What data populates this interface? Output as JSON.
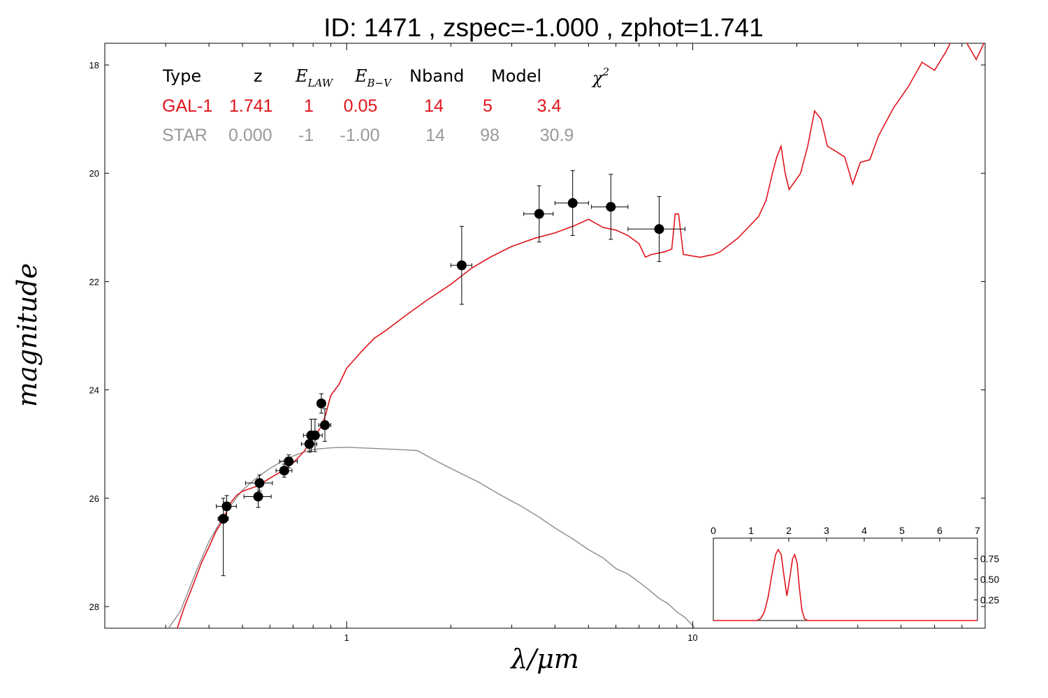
{
  "chart_data": {
    "type": "scatter",
    "title": "ID:  1471  , zspec=-1.000 , zphot=1.741",
    "xlabel": "λ/μm",
    "ylabel": "magnitude",
    "xscale": "log",
    "xlim": [
      0.2,
      70
    ],
    "ylim": [
      28.4,
      17.6
    ],
    "y_inverted": true,
    "x_ticks": [
      1,
      10
    ],
    "x_tick_labels": [
      "1",
      "10"
    ],
    "y_ticks": [
      18,
      20,
      22,
      24,
      26,
      28
    ],
    "y_tick_labels": [
      "18",
      "20",
      "22",
      "24",
      "26",
      "28"
    ],
    "colors": {
      "galaxy": "#e0141c",
      "star": "#8c8c8c",
      "points": "#000000"
    },
    "legend_table": {
      "placement": "top-left",
      "header": {
        "type": "Type",
        "z": "z",
        "elaw_main": "E",
        "elaw_sub": "LAW",
        "ebv_main": "E",
        "ebv_sub": "B−V",
        "nband": "Nband",
        "model": "Model",
        "chi_main": "χ",
        "chi_sup": "2"
      },
      "rows": [
        {
          "type": "GAL-1",
          "z": "1.741",
          "elaw": "1",
          "ebv": "0.05",
          "nband": "14",
          "model": "5",
          "chi2": "3.4",
          "color": "#e0141c"
        },
        {
          "type": "STAR",
          "z": "0.000",
          "elaw": "-1",
          "ebv": "-1.00",
          "nband": "14",
          "model": "98",
          "chi2": "30.9",
          "color": "#999999"
        }
      ]
    },
    "photometry": [
      {
        "x": 0.44,
        "y": 26.38,
        "xerr": 0.015,
        "yerr": 0.38,
        "yerr_low": 1.05
      },
      {
        "x": 0.45,
        "y": 26.15,
        "xerr": 0.03,
        "yerr": 0.2
      },
      {
        "x": 0.56,
        "y": 25.72,
        "xerr": 0.05,
        "yerr": 0.15
      },
      {
        "x": 0.555,
        "y": 25.97,
        "xerr": 0.05,
        "yerr": 0.2
      },
      {
        "x": 0.66,
        "y": 25.49,
        "xerr": 0.035,
        "yerr": 0.12
      },
      {
        "x": 0.68,
        "y": 25.32,
        "xerr": 0.04,
        "yerr": 0.12
      },
      {
        "x": 0.78,
        "y": 25.0,
        "xerr": 0.04,
        "yerr": 0.15
      },
      {
        "x": 0.79,
        "y": 24.84,
        "xerr": 0.04,
        "yerr": 0.3
      },
      {
        "x": 0.81,
        "y": 24.84,
        "xerr": 0.04,
        "yerr": 0.3
      },
      {
        "x": 0.845,
        "y": 24.25,
        "xerr": 0.015,
        "yerr": 0.18
      },
      {
        "x": 0.865,
        "y": 24.65,
        "xerr": 0.035,
        "yerr": 0.3
      },
      {
        "x": 2.15,
        "y": 21.7,
        "xerr": 0.15,
        "yerr": 0.72
      },
      {
        "x": 3.6,
        "y": 20.75,
        "xerr": 0.35,
        "yerr": 0.52
      },
      {
        "x": 4.5,
        "y": 20.55,
        "xerr": 0.5,
        "yerr": 0.6
      },
      {
        "x": 5.8,
        "y": 20.62,
        "xerr": 0.7,
        "yerr": 0.6
      },
      {
        "x": 8.0,
        "y": 21.03,
        "xerr": 1.5,
        "yerr": 0.6
      }
    ],
    "galaxy_model": [
      [
        0.32,
        28.5
      ],
      [
        0.34,
        28.0
      ],
      [
        0.36,
        27.6
      ],
      [
        0.38,
        27.2
      ],
      [
        0.4,
        26.9
      ],
      [
        0.42,
        26.6
      ],
      [
        0.44,
        26.4
      ],
      [
        0.46,
        26.1
      ],
      [
        0.48,
        25.95
      ],
      [
        0.5,
        25.87
      ],
      [
        0.55,
        25.78
      ],
      [
        0.6,
        25.63
      ],
      [
        0.65,
        25.5
      ],
      [
        0.7,
        25.35
      ],
      [
        0.75,
        25.15
      ],
      [
        0.8,
        24.9
      ],
      [
        0.85,
        24.65
      ],
      [
        0.87,
        24.45
      ],
      [
        0.9,
        24.1
      ],
      [
        0.95,
        23.9
      ],
      [
        1.0,
        23.6
      ],
      [
        1.1,
        23.3
      ],
      [
        1.2,
        23.05
      ],
      [
        1.3,
        22.9
      ],
      [
        1.5,
        22.6
      ],
      [
        1.7,
        22.35
      ],
      [
        2.0,
        22.05
      ],
      [
        2.3,
        21.75
      ],
      [
        2.6,
        21.55
      ],
      [
        3.0,
        21.35
      ],
      [
        3.5,
        21.2
      ],
      [
        4.0,
        21.1
      ],
      [
        4.5,
        20.98
      ],
      [
        5.0,
        20.85
      ],
      [
        5.5,
        21.0
      ],
      [
        6.0,
        21.05
      ],
      [
        6.5,
        21.15
      ],
      [
        7.0,
        21.3
      ],
      [
        7.3,
        21.55
      ],
      [
        7.6,
        21.5
      ],
      [
        8.3,
        21.45
      ],
      [
        8.7,
        21.4
      ],
      [
        8.9,
        20.75
      ],
      [
        9.1,
        20.75
      ],
      [
        9.4,
        21.5
      ],
      [
        10.5,
        21.55
      ],
      [
        11.5,
        21.5
      ],
      [
        12.0,
        21.45
      ],
      [
        13.5,
        21.2
      ],
      [
        15.5,
        20.8
      ],
      [
        16.3,
        20.5
      ],
      [
        17.0,
        20.0
      ],
      [
        17.5,
        19.7
      ],
      [
        18.0,
        19.5
      ],
      [
        18.5,
        20.0
      ],
      [
        19.0,
        20.3
      ],
      [
        20.5,
        20.0
      ],
      [
        21.5,
        19.5
      ],
      [
        22.5,
        18.85
      ],
      [
        23.5,
        19.0
      ],
      [
        24.5,
        19.5
      ],
      [
        26.0,
        19.6
      ],
      [
        27.5,
        19.7
      ],
      [
        29.0,
        20.2
      ],
      [
        30.5,
        19.8
      ],
      [
        32.5,
        19.75
      ],
      [
        34.5,
        19.3
      ],
      [
        38.0,
        18.8
      ],
      [
        42.0,
        18.4
      ],
      [
        46.0,
        17.95
      ],
      [
        50.0,
        18.1
      ],
      [
        54.0,
        17.75
      ],
      [
        58.0,
        17.35
      ],
      [
        62.0,
        17.6
      ],
      [
        66.0,
        17.9
      ],
      [
        70.0,
        17.55
      ]
    ],
    "star_model": [
      [
        0.29,
        28.6
      ],
      [
        0.33,
        28.1
      ],
      [
        0.37,
        27.3
      ],
      [
        0.4,
        26.8
      ],
      [
        0.43,
        26.45
      ],
      [
        0.46,
        26.15
      ],
      [
        0.5,
        25.85
      ],
      [
        0.55,
        25.62
      ],
      [
        0.6,
        25.45
      ],
      [
        0.65,
        25.32
      ],
      [
        0.7,
        25.22
      ],
      [
        0.75,
        25.15
      ],
      [
        0.8,
        25.1
      ],
      [
        0.9,
        25.07
      ],
      [
        1.0,
        25.06
      ],
      [
        1.2,
        25.08
      ],
      [
        1.4,
        25.1
      ],
      [
        1.6,
        25.12
      ],
      [
        1.8,
        25.3
      ],
      [
        2.0,
        25.45
      ],
      [
        2.4,
        25.7
      ],
      [
        2.8,
        25.95
      ],
      [
        3.2,
        26.15
      ],
      [
        3.6,
        26.35
      ],
      [
        4.0,
        26.55
      ],
      [
        4.5,
        26.75
      ],
      [
        5.0,
        26.95
      ],
      [
        5.5,
        27.1
      ],
      [
        6.0,
        27.3
      ],
      [
        6.5,
        27.4
      ],
      [
        7.0,
        27.55
      ],
      [
        7.5,
        27.7
      ],
      [
        8.0,
        27.85
      ],
      [
        8.5,
        27.95
      ],
      [
        9.0,
        28.1
      ],
      [
        9.5,
        28.2
      ],
      [
        10.0,
        28.35
      ],
      [
        10.5,
        28.5
      ]
    ],
    "inset": {
      "placement": "bottom-right",
      "xlim": [
        0,
        7
      ],
      "ylim": [
        0,
        1.0
      ],
      "x_ticks": [
        0,
        1,
        2,
        3,
        4,
        5,
        6,
        7
      ],
      "x_tick_labels": [
        "0",
        "1",
        "2",
        "3",
        "4",
        "5",
        "6",
        "7"
      ],
      "y_ticks": [
        0.25,
        0.5,
        0.75
      ],
      "y_tick_labels": [
        "0.25",
        "0.50",
        "0.75"
      ],
      "pdf": [
        [
          0,
          0
        ],
        [
          1.15,
          0
        ],
        [
          1.25,
          0.02
        ],
        [
          1.35,
          0.1
        ],
        [
          1.45,
          0.28
        ],
        [
          1.55,
          0.55
        ],
        [
          1.65,
          0.8
        ],
        [
          1.72,
          0.86
        ],
        [
          1.8,
          0.8
        ],
        [
          1.88,
          0.52
        ],
        [
          1.95,
          0.3
        ],
        [
          2.02,
          0.5
        ],
        [
          2.1,
          0.75
        ],
        [
          2.16,
          0.8
        ],
        [
          2.22,
          0.7
        ],
        [
          2.28,
          0.4
        ],
        [
          2.35,
          0.12
        ],
        [
          2.42,
          0.02
        ],
        [
          2.5,
          0
        ],
        [
          7,
          0
        ]
      ]
    }
  }
}
